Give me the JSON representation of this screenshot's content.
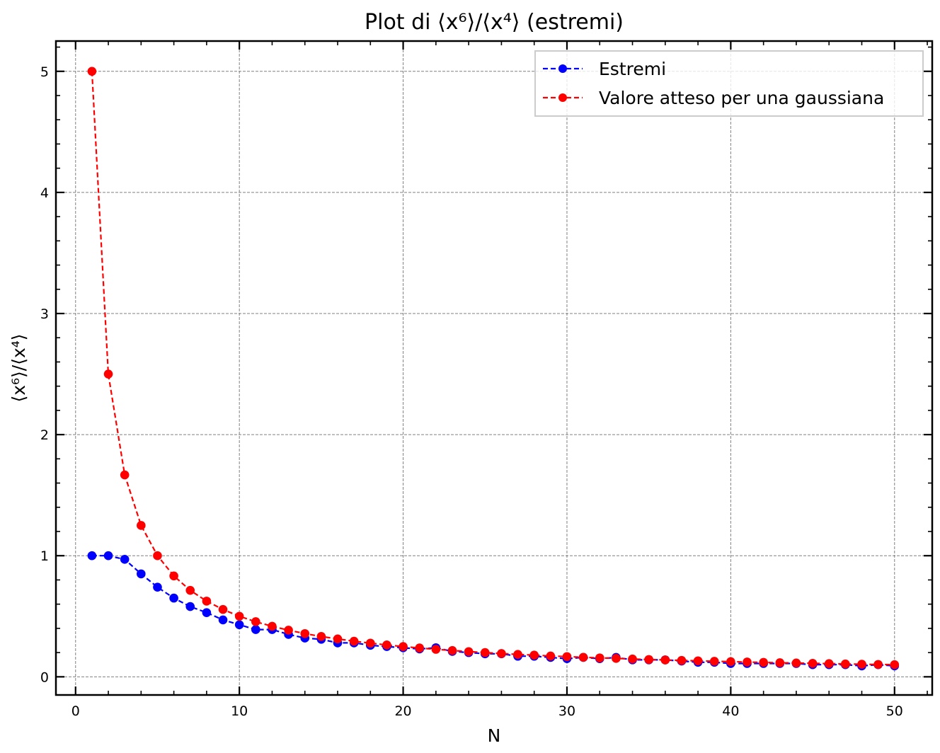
{
  "chart_data": {
    "type": "line",
    "title_prefix": "Plot di ",
    "title_math": "⟨x⁶⟩/⟨x⁴⟩",
    "title_suffix": " (estremi)",
    "xlabel": "N",
    "ylabel": "⟨x⁶⟩/⟨x⁴⟩",
    "xlim": [
      -1.2,
      52.3
    ],
    "ylim": [
      -0.15,
      5.25
    ],
    "xticks": [
      "0",
      "10",
      "20",
      "30",
      "40",
      "50"
    ],
    "yticks": [
      "0",
      "1",
      "2",
      "3",
      "4",
      "5"
    ],
    "grid": true,
    "legend_position": "top-right",
    "x": [
      1,
      2,
      3,
      4,
      5,
      6,
      7,
      8,
      9,
      10,
      11,
      12,
      13,
      14,
      15,
      16,
      17,
      18,
      19,
      20,
      21,
      22,
      23,
      24,
      25,
      26,
      27,
      28,
      29,
      30,
      31,
      32,
      33,
      34,
      35,
      36,
      37,
      38,
      39,
      40,
      41,
      42,
      43,
      44,
      45,
      46,
      47,
      48,
      49,
      50
    ],
    "series": [
      {
        "name": "Estremi",
        "color": "#0000ff",
        "values": [
          1.0,
          1.0,
          0.97,
          0.85,
          0.74,
          0.65,
          0.58,
          0.53,
          0.47,
          0.43,
          0.39,
          0.39,
          0.35,
          0.32,
          0.31,
          0.28,
          0.28,
          0.26,
          0.25,
          0.24,
          0.23,
          0.24,
          0.21,
          0.2,
          0.19,
          0.19,
          0.17,
          0.17,
          0.16,
          0.15,
          0.16,
          0.15,
          0.16,
          0.14,
          0.14,
          0.14,
          0.13,
          0.12,
          0.12,
          0.11,
          0.11,
          0.11,
          0.11,
          0.11,
          0.1,
          0.1,
          0.1,
          0.09,
          0.1,
          0.09
        ]
      },
      {
        "name": "Valore atteso per una gaussiana",
        "color": "#ff0000",
        "values": [
          5.0,
          2.5,
          1.667,
          1.25,
          1.0,
          0.833,
          0.714,
          0.625,
          0.556,
          0.5,
          0.455,
          0.417,
          0.385,
          0.357,
          0.333,
          0.313,
          0.294,
          0.278,
          0.263,
          0.25,
          0.238,
          0.227,
          0.217,
          0.208,
          0.2,
          0.192,
          0.185,
          0.179,
          0.172,
          0.167,
          0.161,
          0.156,
          0.152,
          0.147,
          0.143,
          0.139,
          0.135,
          0.132,
          0.128,
          0.125,
          0.122,
          0.119,
          0.116,
          0.114,
          0.111,
          0.109,
          0.106,
          0.104,
          0.102,
          0.1
        ]
      }
    ]
  }
}
